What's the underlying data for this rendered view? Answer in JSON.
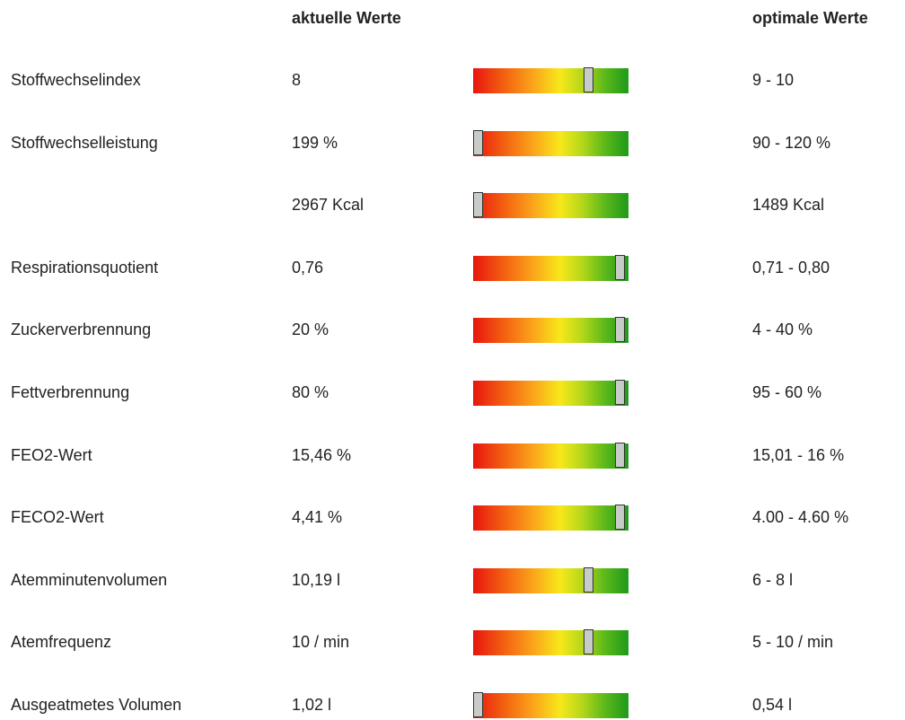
{
  "header": {
    "current": "aktuelle Werte",
    "optimal": "optimale Werte"
  },
  "rows": [
    {
      "label": "Stoffwechselindex",
      "current": "8",
      "optimal": "9 - 10"
    },
    {
      "label": "Stoffwechselleistung",
      "current": "199 %",
      "optimal": "90 - 120 %"
    },
    {
      "current": "2967 Kcal",
      "optimal": "1489 Kcal"
    },
    {
      "label": "Respirationsquotient",
      "current": "0,76",
      "optimal": "0,71 - 0,80"
    },
    {
      "label": "Zuckerverbrennung",
      "current": "20 %",
      "optimal": "4 - 40 %"
    },
    {
      "label": "Fettverbrennung",
      "current": "80 %",
      "optimal": "95 - 60 %"
    },
    {
      "label": "FEO2-Wert",
      "current": "15,46 %",
      "optimal": "15,01 - 16 %"
    },
    {
      "label": "FECO2-Wert",
      "current": "4,41 %",
      "optimal": "4.00 - 4.60 %"
    },
    {
      "label": "Atemminutenvolumen",
      "current": "10,19 l",
      "optimal": "6 - 8 l"
    },
    {
      "label": "Atemfrequenz",
      "current": "10 / min",
      "optimal": "5 - 10 / min"
    },
    {
      "label": "Ausgeatmetes Volumen",
      "current": "1,02 l",
      "optimal": "0,54 l"
    }
  ]
}
